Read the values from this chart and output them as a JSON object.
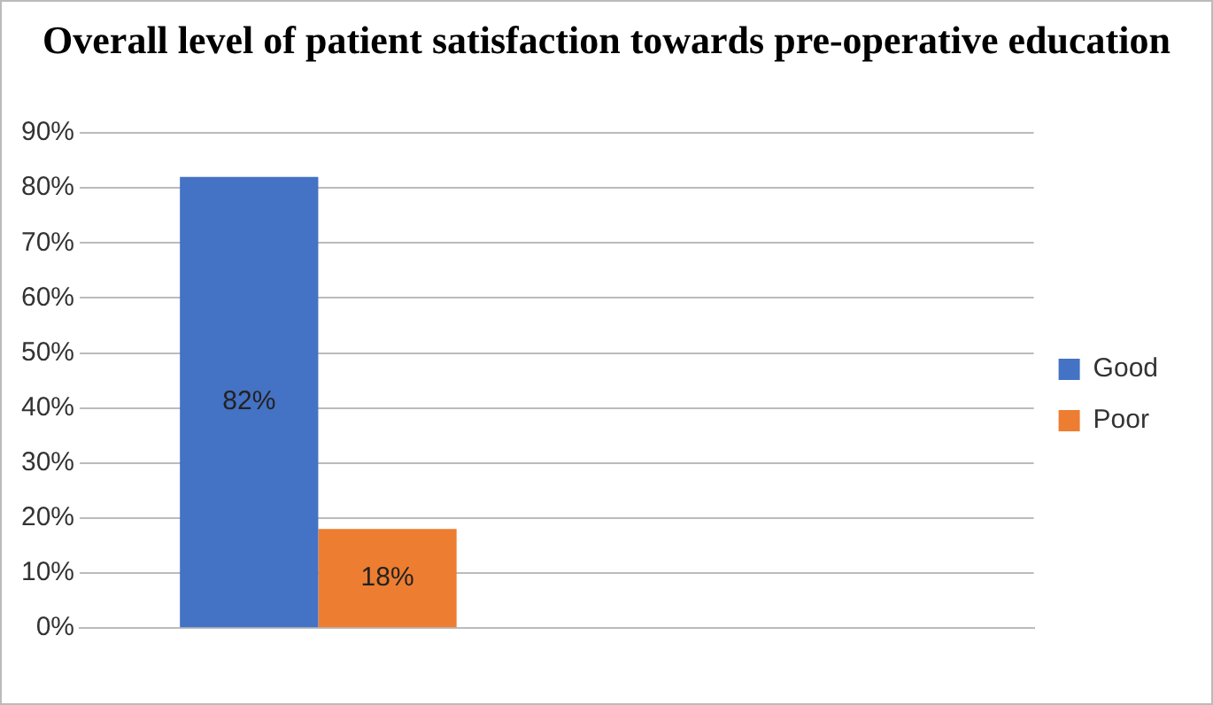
{
  "chart_data": {
    "type": "bar",
    "title": "Overall level of patient satisfaction towards pre-operative education",
    "categories": [
      null,
      null
    ],
    "series": [
      {
        "name": "Good",
        "color": "#4472c4",
        "values": [
          82,
          null
        ],
        "value_labels": [
          "82%",
          null
        ]
      },
      {
        "name": "Poor",
        "color": "#ed7d31",
        "values": [
          18,
          null
        ],
        "value_labels": [
          "18%",
          null
        ]
      }
    ],
    "ylim": [
      0,
      90
    ],
    "yticks": [
      {
        "value": 0,
        "label": "0%"
      },
      {
        "value": 10,
        "label": "10%"
      },
      {
        "value": 20,
        "label": "20%"
      },
      {
        "value": 30,
        "label": "30%"
      },
      {
        "value": 40,
        "label": "40%"
      },
      {
        "value": 50,
        "label": "50%"
      },
      {
        "value": 60,
        "label": "60%"
      },
      {
        "value": 70,
        "label": "70%"
      },
      {
        "value": 80,
        "label": "80%"
      },
      {
        "value": 90,
        "label": "90%"
      }
    ],
    "grid": "y",
    "legend": "right"
  }
}
